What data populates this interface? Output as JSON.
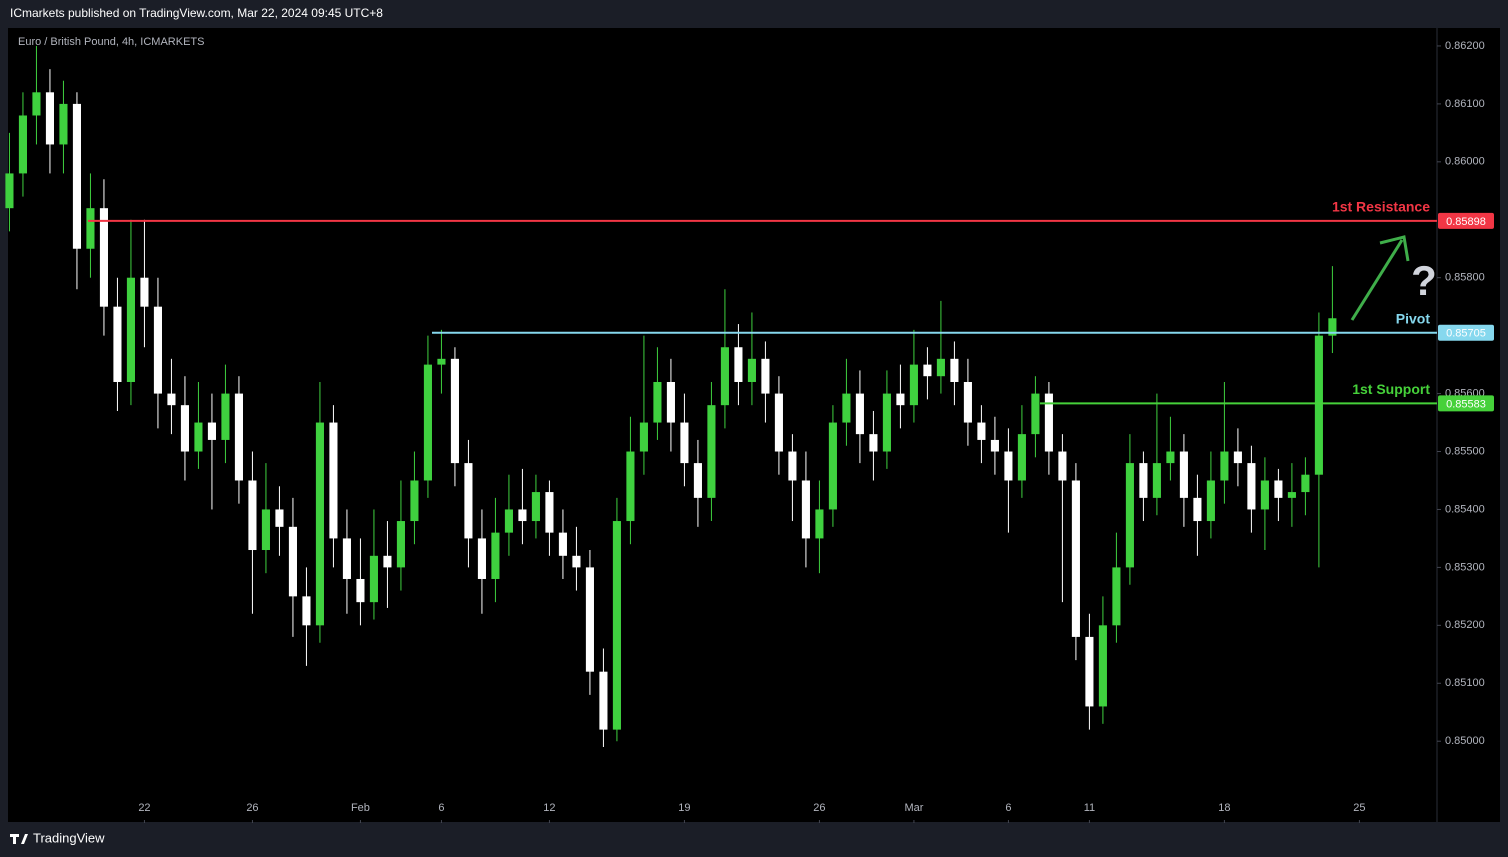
{
  "header": {
    "publisher": "ICmarkets published on TradingView.com, Mar 22, 2024 09:45 UTC+8",
    "footer": "TradingView"
  },
  "chart_data": {
    "type": "candlestick",
    "title": "Euro / British Pound, 4h, ICMARKETS",
    "open": [
      0.8592,
      0.8598,
      0.8608,
      0.8612,
      0.8603,
      0.861,
      0.8585,
      0.8592,
      0.8575,
      0.8562,
      0.858,
      0.8575,
      0.856,
      0.8558,
      0.855,
      0.8555,
      0.8552,
      0.856,
      0.8545,
      0.8533,
      0.854,
      0.8537,
      0.8525,
      0.852,
      0.8555,
      0.8535,
      0.8528,
      0.8524,
      0.8532,
      0.853,
      0.8538,
      0.8545,
      0.8565,
      0.8566,
      0.8548,
      0.8535,
      0.8528,
      0.8536,
      0.854,
      0.8538,
      0.8543,
      0.8536,
      0.8532,
      0.853,
      0.8512,
      0.8502,
      0.8538,
      0.855,
      0.8555,
      0.8562,
      0.8555,
      0.8548,
      0.8542,
      0.8558,
      0.8568,
      0.8562,
      0.8566,
      0.856,
      0.855,
      0.8545,
      0.8535,
      0.854,
      0.8555,
      0.856,
      0.8553,
      0.855,
      0.856,
      0.8558,
      0.8565,
      0.8563,
      0.8566,
      0.8562,
      0.8555,
      0.8552,
      0.855,
      0.8545,
      0.8553,
      0.856,
      0.855,
      0.8545,
      0.8518,
      0.8506,
      0.852,
      0.853,
      0.8548,
      0.8542,
      0.8548,
      0.855,
      0.8542,
      0.8538,
      0.8545,
      0.855,
      0.8548,
      0.854,
      0.8545,
      0.8542,
      0.8543,
      0.8546,
      0.857
    ],
    "high": [
      0.8605,
      0.8612,
      0.862,
      0.8616,
      0.8614,
      0.8612,
      0.8598,
      0.8597,
      0.858,
      0.859,
      0.859,
      0.858,
      0.8566,
      0.8563,
      0.8562,
      0.856,
      0.8565,
      0.8563,
      0.855,
      0.8548,
      0.8544,
      0.8542,
      0.853,
      0.8562,
      0.8558,
      0.854,
      0.8535,
      0.854,
      0.8538,
      0.8545,
      0.855,
      0.857,
      0.8571,
      0.8568,
      0.8552,
      0.854,
      0.8542,
      0.8546,
      0.8547,
      0.8546,
      0.8545,
      0.854,
      0.8537,
      0.8533,
      0.8516,
      0.8542,
      0.8556,
      0.857,
      0.8568,
      0.8566,
      0.856,
      0.8552,
      0.8562,
      0.8578,
      0.8572,
      0.8574,
      0.8569,
      0.8563,
      0.8553,
      0.855,
      0.8545,
      0.8558,
      0.8566,
      0.8564,
      0.8557,
      0.8564,
      0.8565,
      0.8571,
      0.8568,
      0.8576,
      0.8569,
      0.8566,
      0.8558,
      0.8556,
      0.8554,
      0.8558,
      0.8563,
      0.8562,
      0.8553,
      0.8548,
      0.8522,
      0.8525,
      0.8536,
      0.8553,
      0.855,
      0.856,
      0.8556,
      0.8553,
      0.8546,
      0.855,
      0.8562,
      0.8554,
      0.8551,
      0.8549,
      0.8547,
      0.8548,
      0.8549,
      0.8574,
      0.8582
    ],
    "low": [
      0.8588,
      0.8594,
      0.8603,
      0.8598,
      0.8598,
      0.8578,
      0.858,
      0.857,
      0.8557,
      0.8558,
      0.8568,
      0.8554,
      0.8553,
      0.8545,
      0.8547,
      0.854,
      0.8548,
      0.8541,
      0.8522,
      0.8529,
      0.8532,
      0.8518,
      0.8513,
      0.8517,
      0.853,
      0.8522,
      0.852,
      0.8521,
      0.8523,
      0.8526,
      0.8534,
      0.8542,
      0.856,
      0.8544,
      0.853,
      0.8522,
      0.8524,
      0.8532,
      0.8534,
      0.8535,
      0.8532,
      0.8528,
      0.8526,
      0.8508,
      0.8499,
      0.85,
      0.8534,
      0.8546,
      0.8552,
      0.855,
      0.8544,
      0.8537,
      0.8538,
      0.8554,
      0.8558,
      0.8558,
      0.8555,
      0.8546,
      0.8538,
      0.853,
      0.8529,
      0.8537,
      0.8551,
      0.8548,
      0.8545,
      0.8547,
      0.8554,
      0.8555,
      0.8559,
      0.856,
      0.8558,
      0.8551,
      0.8548,
      0.8546,
      0.8536,
      0.8542,
      0.8549,
      0.8546,
      0.8524,
      0.8514,
      0.8502,
      0.8503,
      0.8517,
      0.8527,
      0.8538,
      0.8539,
      0.8545,
      0.8537,
      0.8532,
      0.8535,
      0.8541,
      0.8544,
      0.8536,
      0.8533,
      0.8538,
      0.8537,
      0.8539,
      0.853,
      0.8567
    ],
    "close": [
      0.8598,
      0.8608,
      0.8612,
      0.8603,
      0.861,
      0.8585,
      0.8592,
      0.8575,
      0.8562,
      0.858,
      0.8575,
      0.856,
      0.8558,
      0.855,
      0.8555,
      0.8552,
      0.856,
      0.8545,
      0.8533,
      0.854,
      0.8537,
      0.8525,
      0.852,
      0.8555,
      0.8535,
      0.8528,
      0.8524,
      0.8532,
      0.853,
      0.8538,
      0.8545,
      0.8565,
      0.8566,
      0.8548,
      0.8535,
      0.8528,
      0.8536,
      0.854,
      0.8538,
      0.8543,
      0.8536,
      0.8532,
      0.853,
      0.8512,
      0.8502,
      0.8538,
      0.855,
      0.8555,
      0.8562,
      0.8555,
      0.8548,
      0.8542,
      0.8558,
      0.8568,
      0.8562,
      0.8566,
      0.856,
      0.855,
      0.8545,
      0.8535,
      0.854,
      0.8555,
      0.856,
      0.8553,
      0.855,
      0.856,
      0.8558,
      0.8565,
      0.8563,
      0.8566,
      0.8562,
      0.8555,
      0.8552,
      0.855,
      0.8545,
      0.8553,
      0.856,
      0.855,
      0.8545,
      0.8518,
      0.8506,
      0.852,
      0.853,
      0.8548,
      0.8542,
      0.8548,
      0.855,
      0.8542,
      0.8538,
      0.8545,
      0.855,
      0.8548,
      0.854,
      0.8545,
      0.8542,
      0.8543,
      0.8546,
      0.857,
      0.8573
    ],
    "up_color": "#3fd13f",
    "down_color": "#ffffff",
    "xlim": [
      -0.7,
      105.6
    ],
    "xticks": [
      {
        "value": 10,
        "label": "22"
      },
      {
        "value": 18,
        "label": "26"
      },
      {
        "value": 26,
        "label": "Feb"
      },
      {
        "value": 32,
        "label": "6"
      },
      {
        "value": 40,
        "label": "12"
      },
      {
        "value": 50,
        "label": "19"
      },
      {
        "value": 60,
        "label": "26"
      },
      {
        "value": 67,
        "label": "Mar"
      },
      {
        "value": 74,
        "label": "6"
      },
      {
        "value": 80,
        "label": "11"
      },
      {
        "value": 90,
        "label": "18"
      },
      {
        "value": 100,
        "label": "25"
      }
    ],
    "ylim": [
      0.84864,
      0.86231
    ],
    "yticks": [
      {
        "value": 0.862,
        "label": "0.86200"
      },
      {
        "value": 0.861,
        "label": "0.86100"
      },
      {
        "value": 0.86,
        "label": "0.86000"
      },
      {
        "value": 0.858,
        "label": "0.85800"
      },
      {
        "value": 0.856,
        "label": "0.85600"
      },
      {
        "value": 0.855,
        "label": "0.85500"
      },
      {
        "value": 0.854,
        "label": "0.85400"
      },
      {
        "value": 0.853,
        "label": "0.85300"
      },
      {
        "value": 0.852,
        "label": "0.85200"
      },
      {
        "value": 0.851,
        "label": "0.85100"
      },
      {
        "value": 0.85,
        "label": "0.85000"
      }
    ],
    "levels": [
      {
        "name": "1st Resistance",
        "value": 0.85898,
        "color": "#f23645"
      },
      {
        "name": "Pivot",
        "value": 0.85705,
        "color": "#86d8ee"
      },
      {
        "name": "1st Support",
        "value": 0.85583,
        "color": "#46d13a"
      }
    ],
    "annotation": "?"
  }
}
